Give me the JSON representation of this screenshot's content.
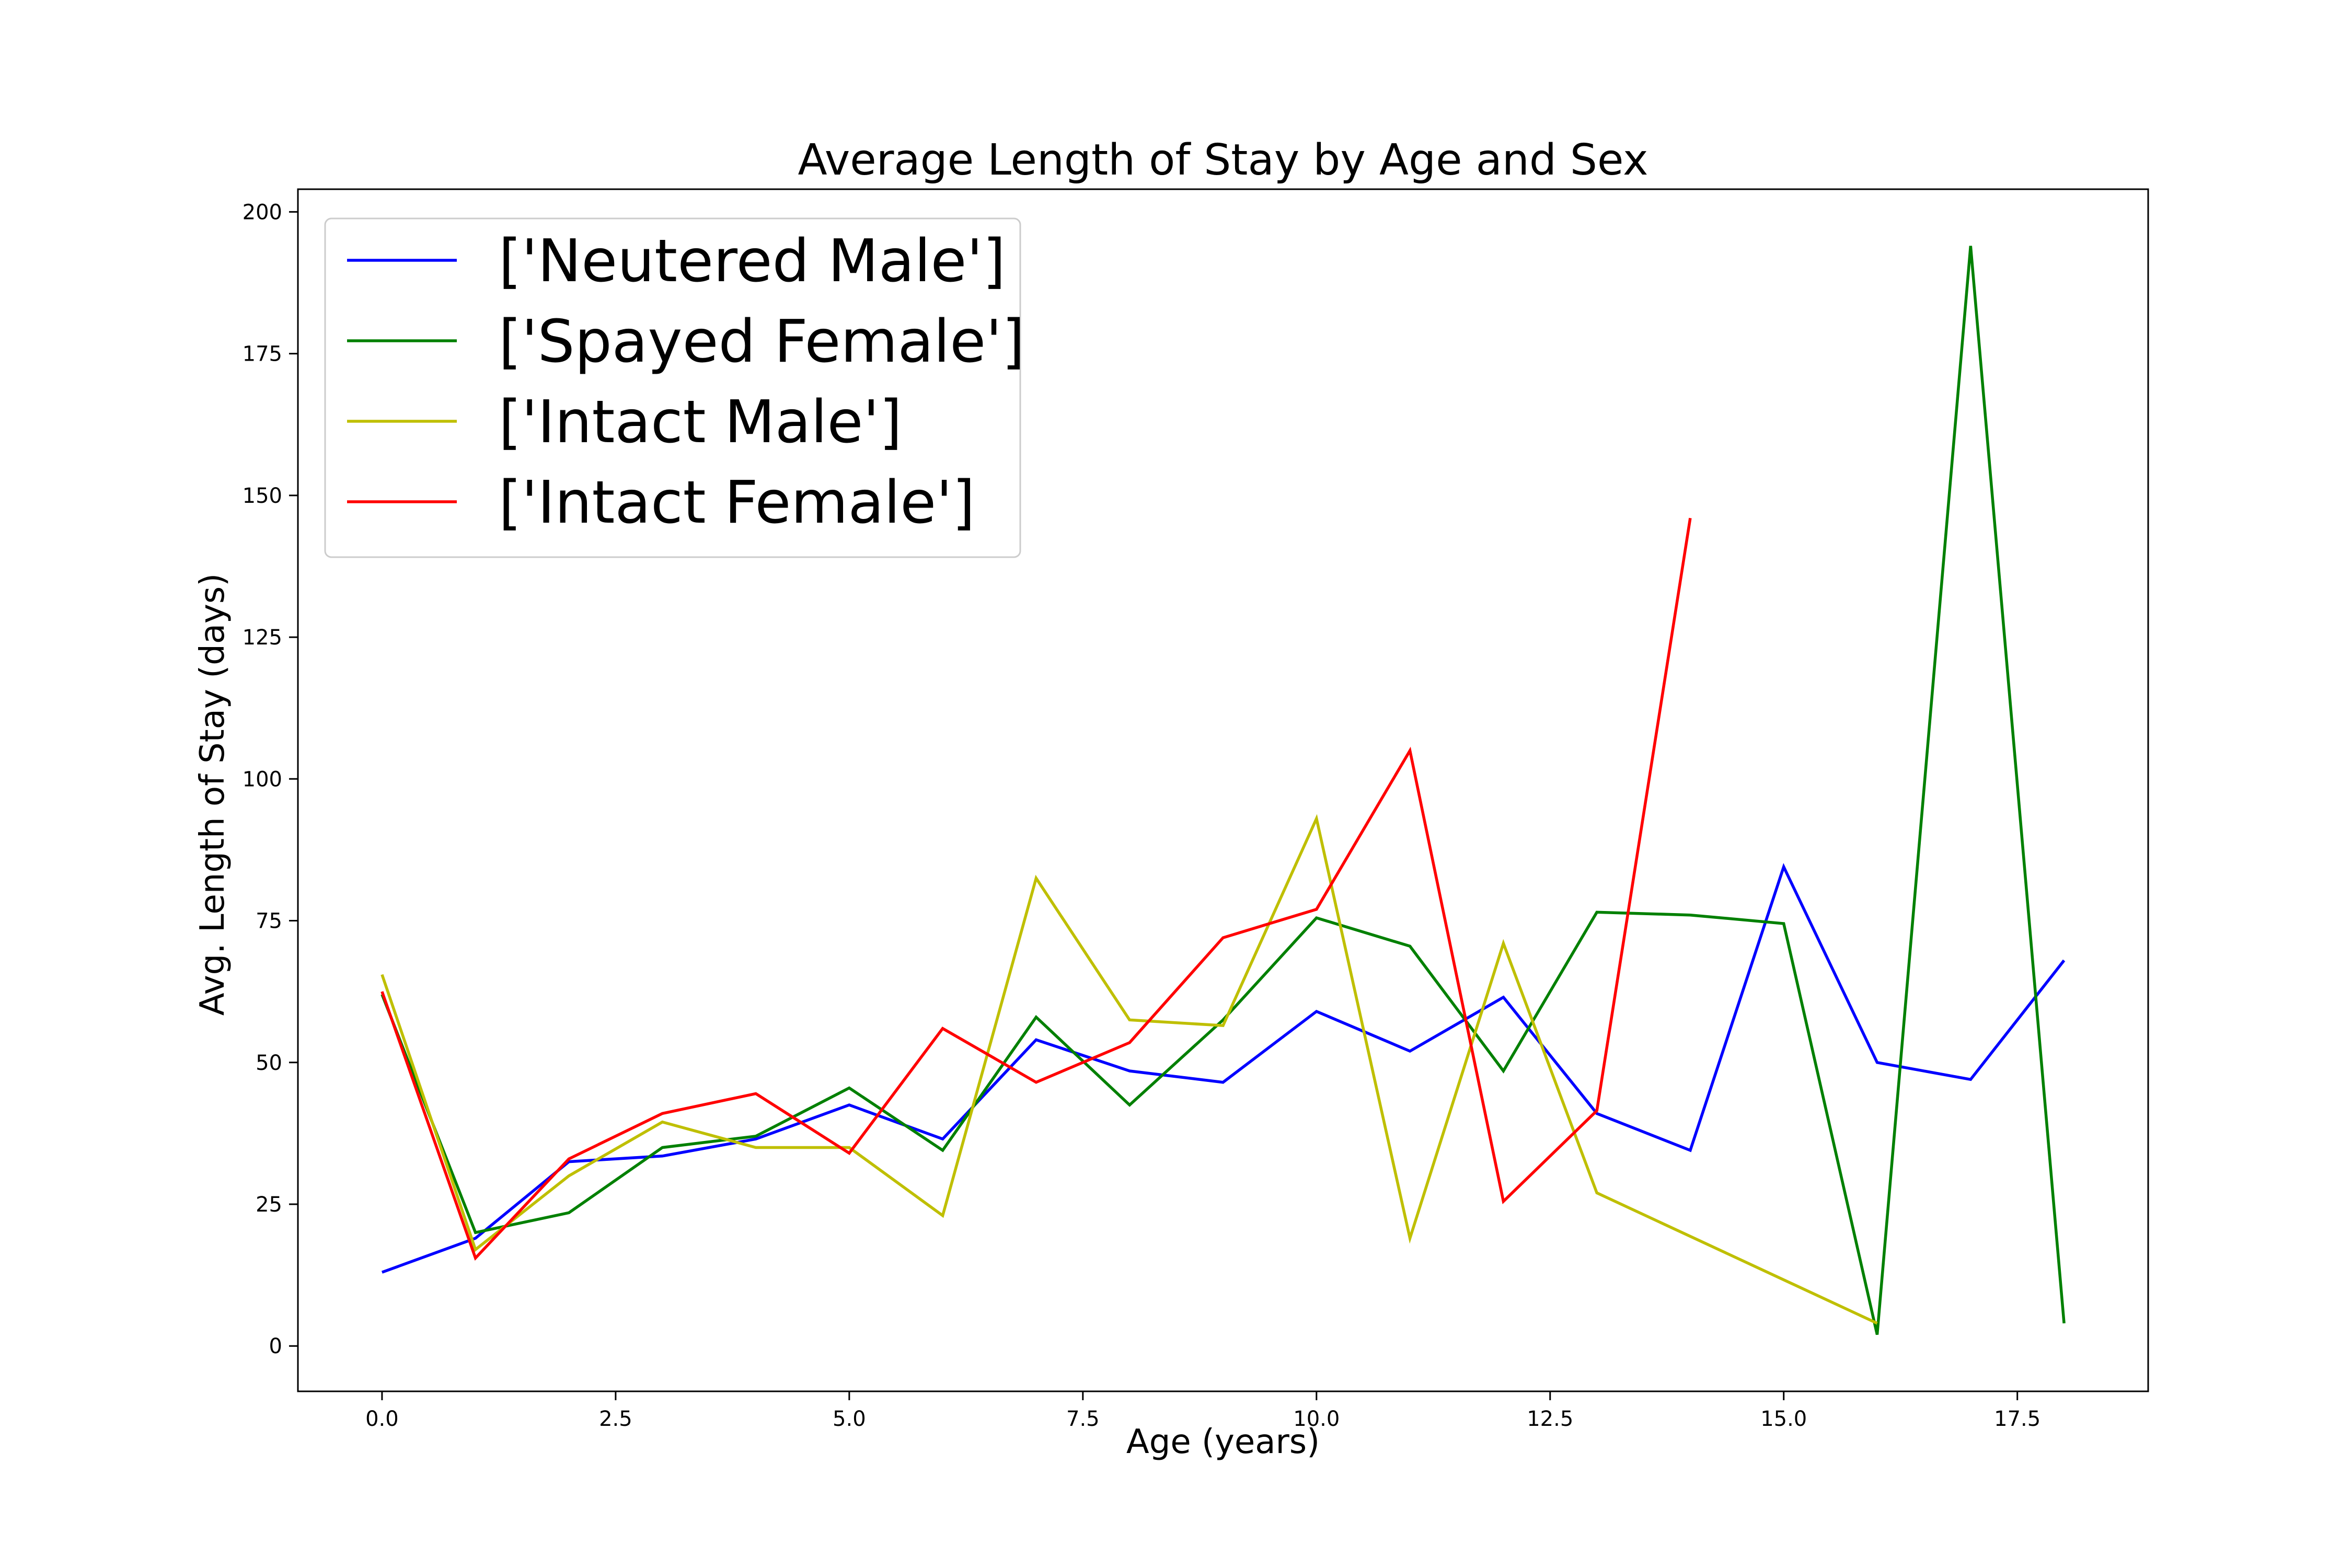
{
  "chart_data": {
    "type": "line",
    "title": "Average Length of Stay by Age and Sex",
    "xlabel": "Age (years)",
    "ylabel": "Avg. Length of Stay (days)",
    "xlim": [
      -0.9,
      18.9
    ],
    "ylim": [
      -8,
      204
    ],
    "xticks": [
      0.0,
      2.5,
      5.0,
      7.5,
      10.0,
      12.5,
      15.0,
      17.5
    ],
    "xtick_labels": [
      "0.0",
      "2.5",
      "5.0",
      "7.5",
      "10.0",
      "12.5",
      "15.0",
      "17.5"
    ],
    "yticks": [
      0,
      25,
      50,
      75,
      100,
      125,
      150,
      175,
      200
    ],
    "ytick_labels": [
      "0",
      "25",
      "50",
      "75",
      "100",
      "125",
      "150",
      "175",
      "200"
    ],
    "grid": false,
    "legend_position": "top-left",
    "series": [
      {
        "name": "['Neutered Male']",
        "color": "#0000ff",
        "x": [
          0,
          1,
          2,
          3,
          4,
          5,
          6,
          7,
          8,
          9,
          10,
          11,
          12,
          13,
          14,
          15,
          16,
          17,
          18
        ],
        "y": [
          13,
          19,
          32.5,
          33.5,
          36.5,
          42.5,
          36.5,
          54,
          48.5,
          46.5,
          59,
          52,
          61.5,
          41,
          34.5,
          84.5,
          50,
          47,
          68
        ]
      },
      {
        "name": "['Spayed Female']",
        "color": "#008000",
        "x": [
          0,
          1,
          2,
          3,
          4,
          5,
          6,
          7,
          8,
          9,
          10,
          11,
          12,
          13,
          14,
          15,
          16,
          17,
          18
        ],
        "y": [
          62,
          20,
          23.5,
          35,
          37,
          45.5,
          34.5,
          58,
          42.5,
          57.5,
          75.5,
          70.5,
          48.5,
          76.5,
          76,
          74.5,
          2,
          194,
          4
        ]
      },
      {
        "name": "['Intact Male']",
        "color": "#bfbf00",
        "x": [
          0,
          1,
          2,
          3,
          4,
          5,
          6,
          7,
          8,
          9,
          10,
          11,
          12,
          13,
          16
        ],
        "y": [
          65.5,
          17,
          30,
          39.5,
          35,
          35,
          23,
          82.5,
          57.5,
          56.5,
          93,
          19,
          71,
          27,
          4
        ]
      },
      {
        "name": "['Intact Female']",
        "color": "#ff0000",
        "x": [
          0,
          1,
          2,
          3,
          4,
          5,
          6,
          7,
          8,
          9,
          10,
          11,
          12,
          13,
          14
        ],
        "y": [
          62.5,
          15.5,
          33,
          41,
          44.5,
          34,
          56,
          46.5,
          53.5,
          72,
          77,
          105,
          25.5,
          41.5,
          146
        ]
      }
    ]
  }
}
